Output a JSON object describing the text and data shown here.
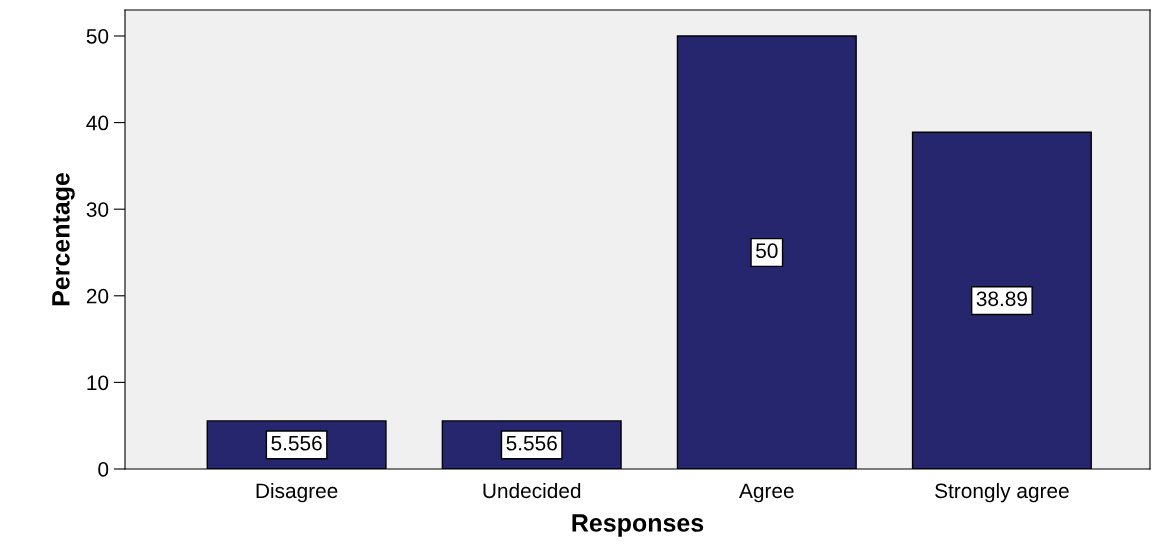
{
  "chart_data": {
    "type": "bar",
    "xlabel": "Responses",
    "ylabel": "Percentage",
    "categories": [
      "Disagree",
      "Undecided",
      "Agree",
      "Strongly agree"
    ],
    "values": [
      5.556,
      5.556,
      50,
      38.89
    ],
    "color": "#26266e",
    "ylim": [
      0,
      53
    ],
    "yticks": [
      0,
      10,
      20,
      30,
      40,
      50
    ],
    "grid": false,
    "data_labels": true
  }
}
